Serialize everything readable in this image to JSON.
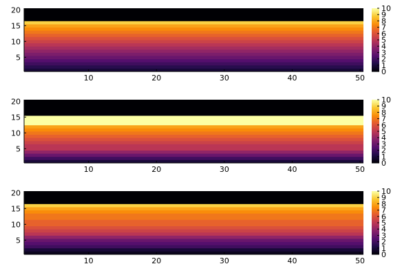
{
  "chart_data": [
    {
      "type": "heatmap",
      "colormap": "inferno",
      "xlim": [
        0.5,
        50.5
      ],
      "ylim": [
        0.5,
        20.5
      ],
      "xticks": [
        10,
        20,
        30,
        40,
        50
      ],
      "yticks": [
        5,
        10,
        15,
        20
      ],
      "clim": [
        0,
        10
      ],
      "colorbar_ticks": [
        0,
        1,
        2,
        3,
        4,
        5,
        6,
        7,
        8,
        9,
        10
      ],
      "row_values": [
        1.0,
        1.5,
        2.0,
        2.5,
        3.0,
        3.5,
        4.0,
        4.5,
        5.0,
        5.5,
        6.0,
        6.5,
        7.0,
        7.5,
        8.0,
        9.0,
        0,
        0,
        0,
        0
      ],
      "grid": false,
      "legend": "colorbar-right"
    },
    {
      "type": "heatmap",
      "colormap": "inferno",
      "xlim": [
        0.5,
        50.5
      ],
      "ylim": [
        0.5,
        20.5
      ],
      "xticks": [
        10,
        20,
        30,
        40,
        50
      ],
      "yticks": [
        5,
        10,
        15,
        20
      ],
      "clim": [
        0,
        10
      ],
      "colorbar_ticks": [
        0,
        1,
        2,
        3,
        4,
        5,
        6,
        7,
        8,
        9,
        10
      ],
      "row_values": [
        1.0,
        2.0,
        3.0,
        4.0,
        5.0,
        5.0,
        5.5,
        6.0,
        6.5,
        7.0,
        7.5,
        8.0,
        10.0,
        10.0,
        10.0,
        0,
        0,
        0,
        0,
        0
      ],
      "grid": false,
      "legend": "colorbar-right"
    },
    {
      "type": "heatmap",
      "colormap": "inferno",
      "xlim": [
        0.5,
        50.5
      ],
      "ylim": [
        0.5,
        20.5
      ],
      "xticks": [
        10,
        20,
        30,
        40,
        50
      ],
      "yticks": [
        5,
        10,
        15,
        20
      ],
      "clim": [
        0,
        10
      ],
      "colorbar_ticks": [
        0,
        1,
        2,
        3,
        4,
        5,
        6,
        7,
        8,
        9,
        10
      ],
      "row_values": [
        0.5,
        1.0,
        2.0,
        2.5,
        3.0,
        4.0,
        5.0,
        5.5,
        6.0,
        6.5,
        6.5,
        7.0,
        7.0,
        7.5,
        8.0,
        9.0,
        0,
        0,
        0,
        0
      ],
      "grid": false,
      "legend": "colorbar-right"
    }
  ]
}
